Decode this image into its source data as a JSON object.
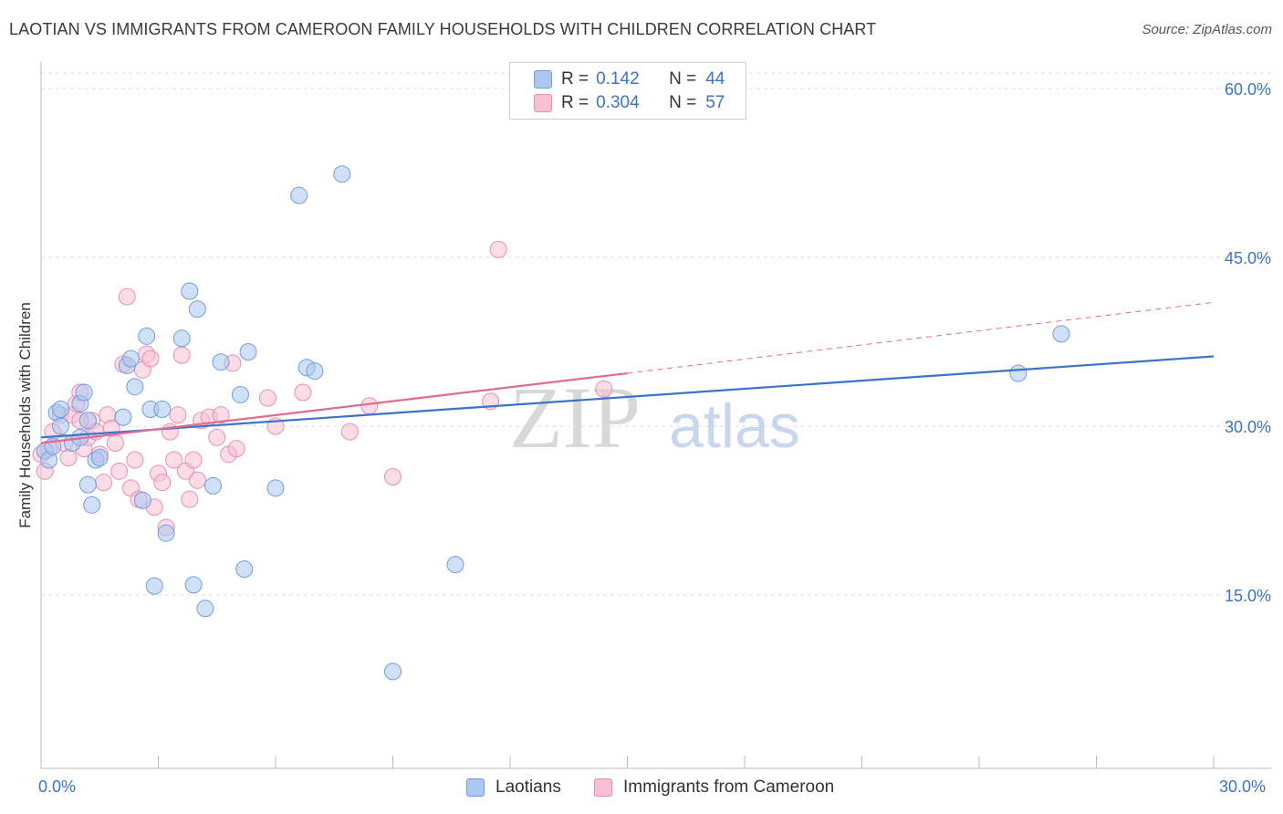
{
  "title": "LAOTIAN VS IMMIGRANTS FROM CAMEROON FAMILY HOUSEHOLDS WITH CHILDREN CORRELATION CHART",
  "source": "Source: ZipAtlas.com",
  "watermark": {
    "zip": "ZIP",
    "atlas": "atlas"
  },
  "legend": {
    "r_label": "R =",
    "n_label": "N =",
    "series": [
      {
        "r": "0.142",
        "n": "44"
      },
      {
        "r": "0.304",
        "n": "57"
      }
    ]
  },
  "colors": {
    "blue_fill": "#a9c7f0",
    "blue_stroke": "#6f9ee0",
    "blue_line": "#3a74c8",
    "pink_fill": "#f7bfd3",
    "pink_stroke": "#e88fb0",
    "pink_line": "#e06b95",
    "grid": "#dcdcdc",
    "tick_text": "#3a74c8"
  },
  "chart_data": {
    "type": "scatter",
    "title": "LAOTIAN VS IMMIGRANTS FROM CAMEROON FAMILY HOUSEHOLDS WITH CHILDREN CORRELATION CHART",
    "xlabel": "",
    "ylabel": "Family Households with Children",
    "xlim": [
      0,
      30
    ],
    "ylim": [
      0,
      60
    ],
    "x_tick_labels": [
      "0.0%",
      "30.0%"
    ],
    "y_ticks": [
      15,
      30,
      45,
      60
    ],
    "y_tick_labels": [
      "15.0%",
      "30.0%",
      "45.0%",
      "60.0%"
    ],
    "grid": true,
    "legend_position": "top-center",
    "series": [
      {
        "name": "Laotians",
        "color": "#a9c7f0",
        "points": [
          [
            0.1,
            27.8
          ],
          [
            0.2,
            27.0
          ],
          [
            0.3,
            28.2
          ],
          [
            0.4,
            31.2
          ],
          [
            0.5,
            30.0
          ],
          [
            0.5,
            31.5
          ],
          [
            0.8,
            28.5
          ],
          [
            1.0,
            32.0
          ],
          [
            1.0,
            29.0
          ],
          [
            1.1,
            33.0
          ],
          [
            1.2,
            24.8
          ],
          [
            1.2,
            30.5
          ],
          [
            1.3,
            23.0
          ],
          [
            1.4,
            27.0
          ],
          [
            1.5,
            27.2
          ],
          [
            2.1,
            30.8
          ],
          [
            2.2,
            35.4
          ],
          [
            2.3,
            36.0
          ],
          [
            2.4,
            33.5
          ],
          [
            2.6,
            23.4
          ],
          [
            2.7,
            38.0
          ],
          [
            2.8,
            31.5
          ],
          [
            2.9,
            15.8
          ],
          [
            3.1,
            31.5
          ],
          [
            3.2,
            20.5
          ],
          [
            3.6,
            37.8
          ],
          [
            3.8,
            42.0
          ],
          [
            3.9,
            15.9
          ],
          [
            4.0,
            40.4
          ],
          [
            4.2,
            13.8
          ],
          [
            4.4,
            24.7
          ],
          [
            4.6,
            35.7
          ],
          [
            5.1,
            32.8
          ],
          [
            5.2,
            17.3
          ],
          [
            5.3,
            36.6
          ],
          [
            6.0,
            24.5
          ],
          [
            6.6,
            50.5
          ],
          [
            6.8,
            35.2
          ],
          [
            7.0,
            34.9
          ],
          [
            7.7,
            52.4
          ],
          [
            9.0,
            8.2
          ],
          [
            10.6,
            17.7
          ],
          [
            25.0,
            34.7
          ],
          [
            26.1,
            38.2
          ]
        ]
      },
      {
        "name": "Immigrants from Cameroon",
        "color": "#f7bfd3",
        "points": [
          [
            0.0,
            27.5
          ],
          [
            0.1,
            26.0
          ],
          [
            0.2,
            28.0
          ],
          [
            0.3,
            29.5
          ],
          [
            0.5,
            31.0
          ],
          [
            0.6,
            28.5
          ],
          [
            0.7,
            27.2
          ],
          [
            0.8,
            31.0
          ],
          [
            0.9,
            32.0
          ],
          [
            1.0,
            33.0
          ],
          [
            1.1,
            28.0
          ],
          [
            1.2,
            29.0
          ],
          [
            1.3,
            30.5
          ],
          [
            1.4,
            29.5
          ],
          [
            1.5,
            27.5
          ],
          [
            1.6,
            25.0
          ],
          [
            1.7,
            31.0
          ],
          [
            1.8,
            29.8
          ],
          [
            1.9,
            28.5
          ],
          [
            2.0,
            26.0
          ],
          [
            2.1,
            35.5
          ],
          [
            2.2,
            41.5
          ],
          [
            2.3,
            24.5
          ],
          [
            2.4,
            27.0
          ],
          [
            2.5,
            23.5
          ],
          [
            2.6,
            35.0
          ],
          [
            2.7,
            36.4
          ],
          [
            2.8,
            36.0
          ],
          [
            2.9,
            22.8
          ],
          [
            3.0,
            25.8
          ],
          [
            3.1,
            25.0
          ],
          [
            3.2,
            21.0
          ],
          [
            3.3,
            29.5
          ],
          [
            3.4,
            27.0
          ],
          [
            3.5,
            31.0
          ],
          [
            3.6,
            36.3
          ],
          [
            3.7,
            26.0
          ],
          [
            3.8,
            23.5
          ],
          [
            3.9,
            27.0
          ],
          [
            4.0,
            25.2
          ],
          [
            4.1,
            30.5
          ],
          [
            4.3,
            30.8
          ],
          [
            4.5,
            29.0
          ],
          [
            4.6,
            31.0
          ],
          [
            4.8,
            27.5
          ],
          [
            4.9,
            35.6
          ],
          [
            5.0,
            28.0
          ],
          [
            5.8,
            32.5
          ],
          [
            6.7,
            33.0
          ],
          [
            7.9,
            29.5
          ],
          [
            8.4,
            31.8
          ],
          [
            9.0,
            25.5
          ],
          [
            11.5,
            32.2
          ],
          [
            11.7,
            45.7
          ],
          [
            14.4,
            33.3
          ],
          [
            6.0,
            30.0
          ],
          [
            1.0,
            30.5
          ]
        ]
      }
    ],
    "trendlines": [
      {
        "series": "Laotians",
        "from": [
          0,
          29.0
        ],
        "to": [
          30,
          36.2
        ],
        "style": "solid"
      },
      {
        "series": "Immigrants from Cameroon",
        "from": [
          0,
          28.5
        ],
        "to": [
          15,
          34.7
        ],
        "style": "solid"
      },
      {
        "series": "Immigrants from Cameroon",
        "from": [
          15,
          34.7
        ],
        "to": [
          30,
          41.0
        ],
        "style": "dashed"
      }
    ]
  }
}
